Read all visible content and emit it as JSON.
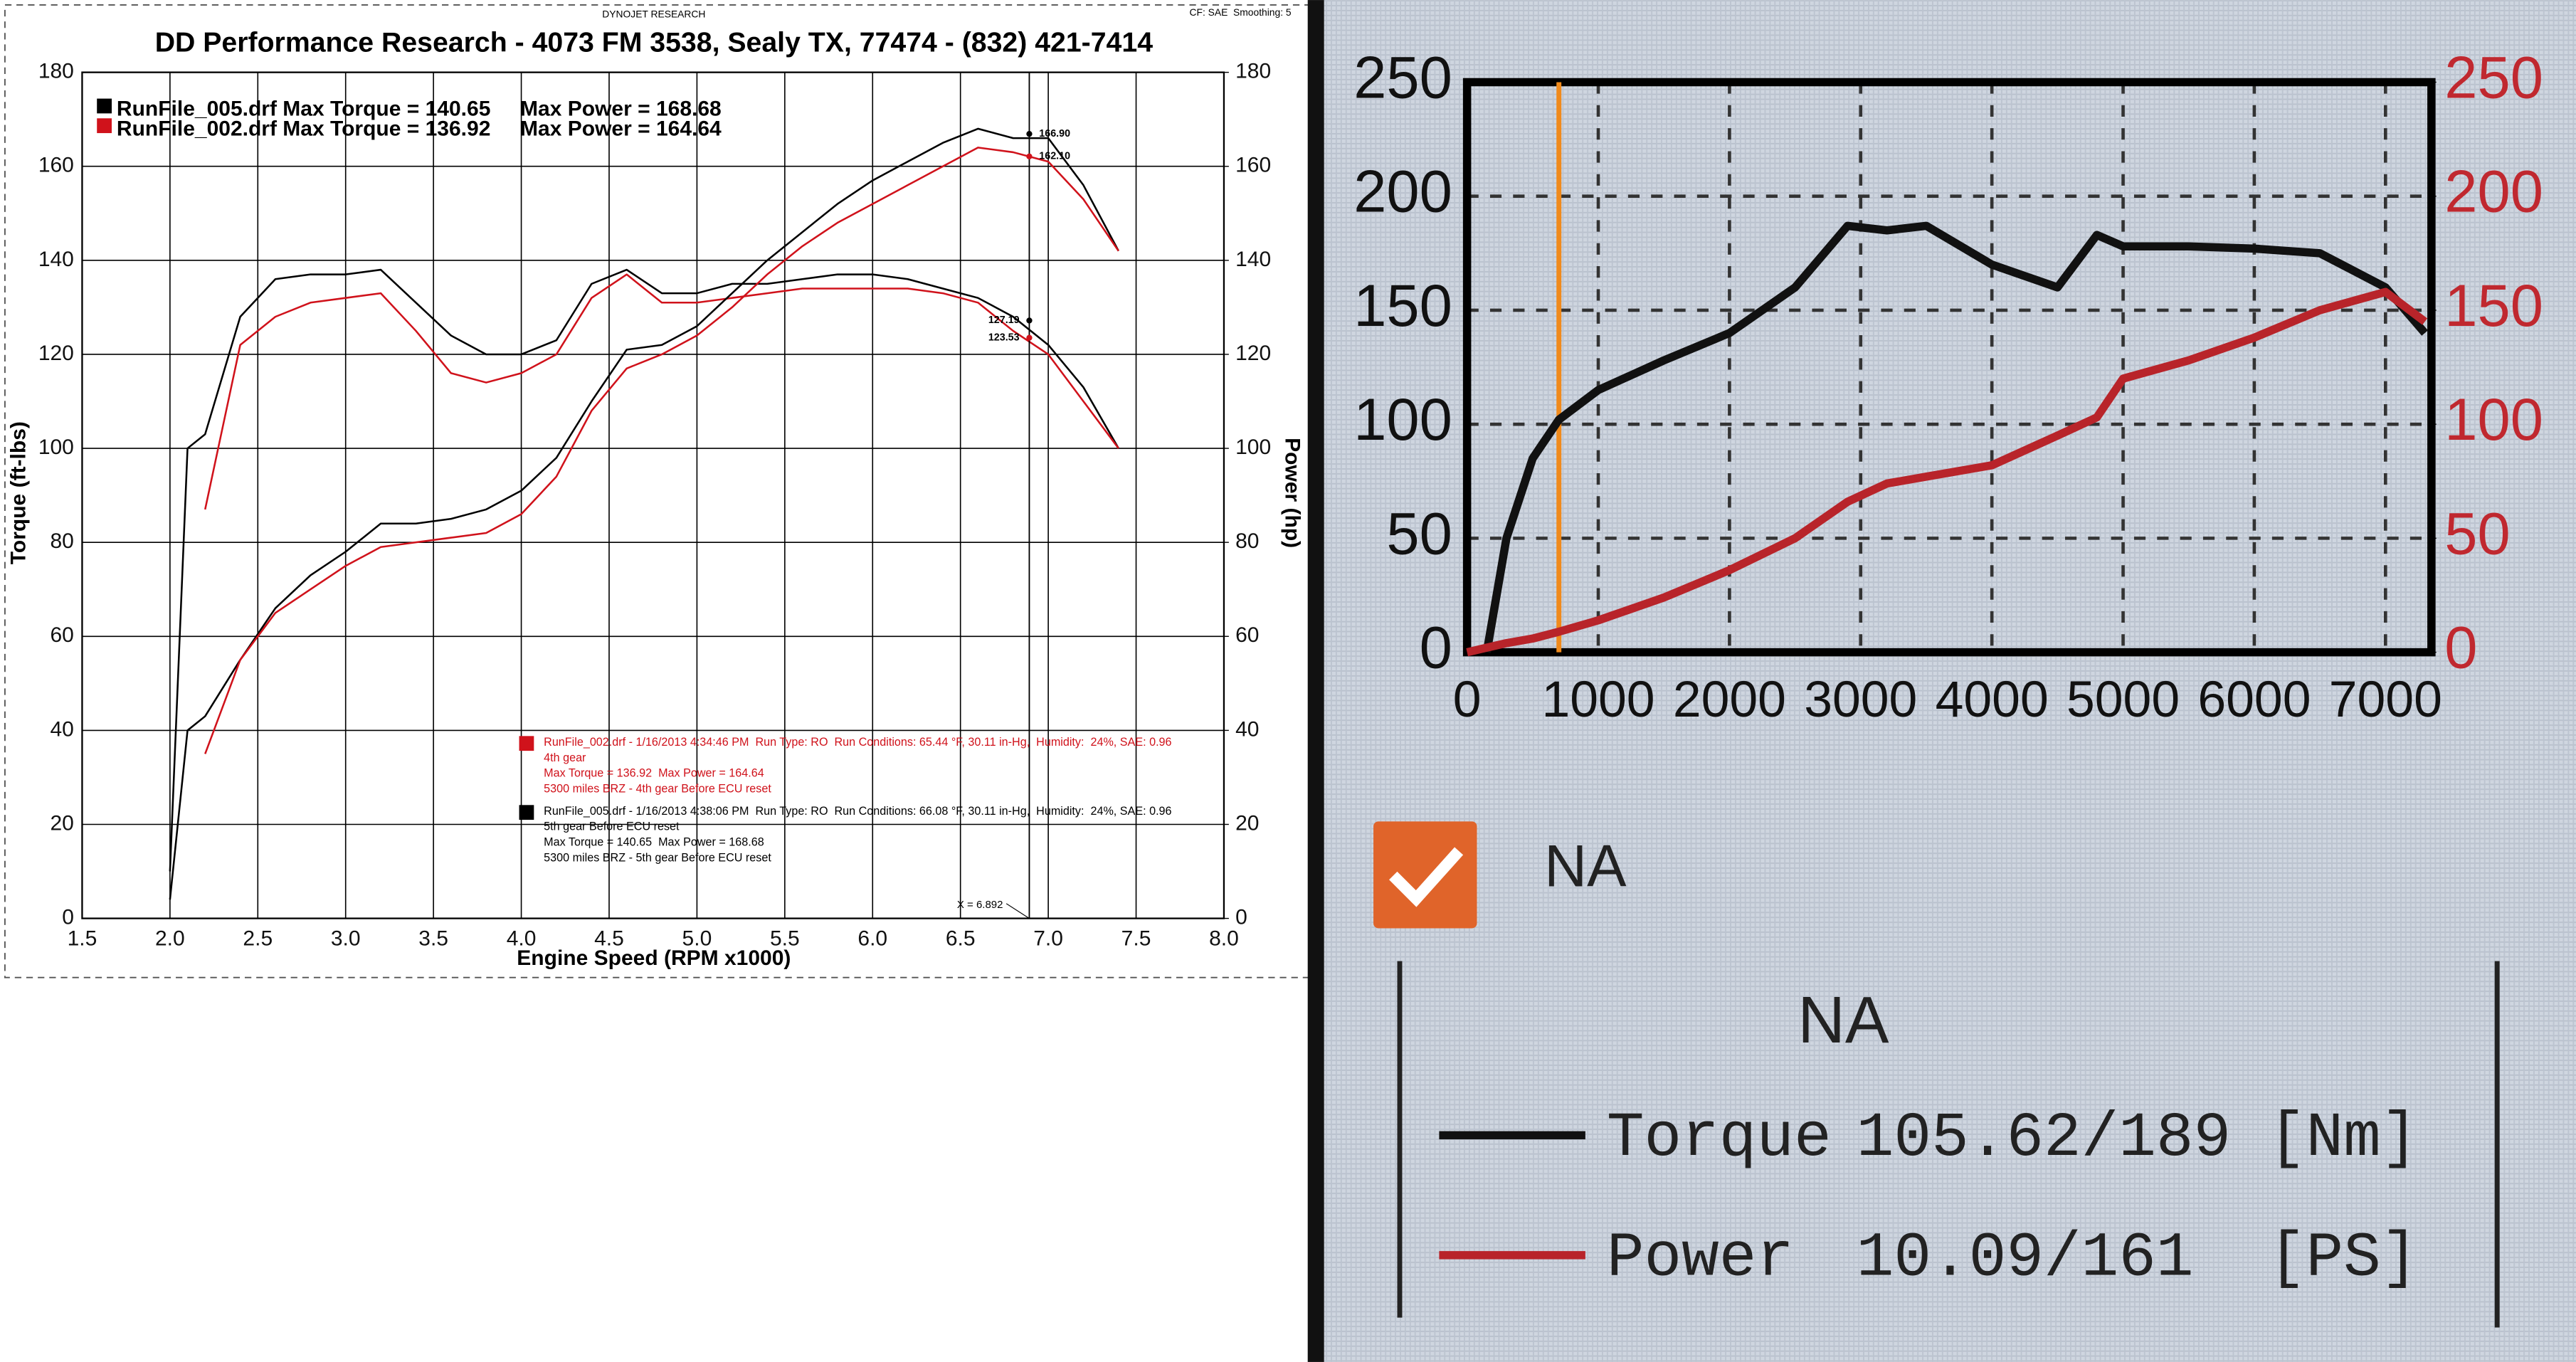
{
  "chart_data": [
    {
      "type": "line",
      "header_left": "DYNOJET RESEARCH",
      "header_right": "CF: SAE  Smoothing: 5",
      "title": "DD Performance Research - 4073 FM 3538, Sealy TX, 77474 - (832) 421-7414",
      "xlabel": "Engine Speed (RPM x1000)",
      "ylabel": "Torque (ft-lbs)",
      "y2label": "Power (hp)",
      "xlim": [
        1.5,
        8.0
      ],
      "xticks": [
        1.5,
        {
          "value": 2,
          "label": "2.0"
        },
        2.5,
        {
          "value": 3,
          "label": "3.0"
        },
        3.5,
        {
          "value": 4,
          "label": "4.0"
        },
        4.5,
        {
          "value": 5,
          "label": "5.0"
        },
        5.5,
        {
          "value": 6,
          "label": "6.0"
        },
        6.5,
        {
          "value": 7,
          "label": "7.0"
        },
        7.5,
        {
          "value": 8,
          "label": "8.0"
        }
      ],
      "ylim": [
        0,
        180
      ],
      "yticks": [
        0,
        20,
        40,
        60,
        80,
        100,
        120,
        140,
        160,
        180
      ],
      "y2lim": [
        0,
        180
      ],
      "y2ticks": [
        0,
        20,
        40,
        60,
        80,
        100,
        120,
        140,
        160,
        180
      ],
      "grid": true,
      "legend": [
        {
          "label": "RunFile_005.drf Max Torque = 140.65     Max Power = 168.68",
          "color": "#000000"
        },
        {
          "label": "RunFile_002.drf Max Torque = 136.92     Max Power = 164.64",
          "color": "#d0121b"
        }
      ],
      "x": [
        2,
        2.1,
        2.2,
        2.4,
        2.6,
        2.8,
        3,
        3.2,
        3.4,
        3.6,
        3.8,
        4,
        4.2,
        4.4,
        4.6,
        4.8,
        5,
        5.2,
        5.4,
        5.6,
        5.8,
        6,
        6.2,
        6.4,
        6.6,
        6.8,
        7,
        7.2,
        7.4
      ],
      "series": [
        {
          "color": "#000000",
          "axis": "y",
          "values": [
            10,
            100,
            103,
            128,
            136,
            137,
            137,
            138,
            131,
            124,
            120,
            120,
            123,
            135,
            138,
            133,
            133,
            135,
            135,
            136,
            137,
            137,
            136,
            134,
            132,
            128,
            122,
            113,
            100
          ]
        },
        {
          "color": "#d0121b",
          "axis": "y",
          "values": [
            null,
            null,
            87,
            122,
            128,
            131,
            132,
            133,
            125,
            116,
            114,
            116,
            120,
            132,
            137,
            131,
            131,
            132,
            133,
            134,
            134,
            134,
            134,
            133,
            131,
            125,
            120,
            110,
            100
          ]
        },
        {
          "color": "#000000",
          "axis": "y2",
          "values": [
            4,
            40,
            43,
            55,
            66,
            73,
            78,
            84,
            84,
            85,
            87,
            91,
            98,
            110,
            121,
            122,
            126,
            133,
            140,
            146,
            152,
            157,
            161,
            165,
            168,
            166,
            166,
            156,
            142
          ]
        },
        {
          "color": "#d0121b",
          "axis": "y2",
          "values": [
            null,
            null,
            35,
            55,
            65,
            70,
            75,
            79,
            80,
            81,
            82,
            86,
            94,
            108,
            117,
            120,
            124,
            130,
            137,
            143,
            148,
            152,
            156,
            160,
            164,
            163,
            161,
            153,
            142
          ]
        }
      ],
      "cursor": {
        "value": 6.892,
        "label": "X = 6.892"
      },
      "cursor_readouts": [
        {
          "value": 166.9,
          "label": "166.90",
          "axis": "y2",
          "color": "#000000"
        },
        {
          "value": 162.1,
          "label": "162.10",
          "axis": "y2",
          "color": "#d0121b"
        },
        {
          "value": 127.19,
          "label": "127.19",
          "axis": "y",
          "color": "#000000"
        },
        {
          "value": 123.53,
          "label": "123.53",
          "axis": "y",
          "color": "#d0121b"
        }
      ],
      "run_notes": [
        {
          "color": "#d0121b",
          "lines": [
            "RunFile_002.drf - 1/16/2013 4:34:46 PM  Run Type: RO  Run Conditions: 65.44 °F, 30.11 in-Hg,  Humidity:  24%, SAE: 0.96",
            "4th gear",
            "Max Torque = 136.92  Max Power = 164.64",
            "5300 miles BRZ - 4th gear Before ECU reset"
          ]
        },
        {
          "color": "#000000",
          "lines": [
            "RunFile_005.drf - 1/16/2013 4:38:06 PM  Run Type: RO  Run Conditions: 66.08 °F, 30.11 in-Hg,  Humidity:  24%, SAE: 0.96",
            "5th gear Before ECU reset",
            "Max Torque = 140.65  Max Power = 168.68",
            "5300 miles BRZ - 5th gear Before ECU reset"
          ]
        }
      ]
    },
    {
      "type": "line",
      "xlim": [
        0,
        7350
      ],
      "xticks": [
        0,
        1000,
        2000,
        3000,
        4000,
        5000,
        6000,
        7000
      ],
      "ylim": [
        0,
        250
      ],
      "yticks": [
        0,
        50,
        100,
        150,
        200,
        250
      ],
      "y2lim": [
        0,
        250
      ],
      "y2ticks": [
        0,
        50,
        100,
        150,
        200,
        250
      ],
      "y2_color": "#c0282f",
      "grid": true,
      "cursor_x": 700,
      "cursor_color": "#f08a1c",
      "checkbox_label": "NA",
      "legend_title": "NA",
      "x": [
        0,
        150,
        300,
        500,
        700,
        1000,
        1500,
        2000,
        2500,
        2900,
        3200,
        3500,
        4000,
        4500,
        4800,
        5000,
        5500,
        6000,
        6500,
        7000,
        7300
      ],
      "series": [
        {
          "name": "Torque",
          "readout": "105.62/189 [Nm]",
          "color": "#111111",
          "axis": "y",
          "values": [
            null,
            0,
            50,
            85,
            102,
            115,
            128,
            140,
            160,
            187,
            185,
            187,
            170,
            160,
            183,
            178,
            178,
            177,
            175,
            160,
            140
          ]
        },
        {
          "name": "Power",
          "readout": "10.09/161  [PS]",
          "color": "#b8242a",
          "axis": "y2",
          "values": [
            0,
            2,
            4,
            6,
            9,
            14,
            24,
            36,
            50,
            66,
            74,
            77,
            82,
            95,
            103,
            120,
            128,
            138,
            150,
            158,
            145
          ]
        }
      ]
    }
  ]
}
